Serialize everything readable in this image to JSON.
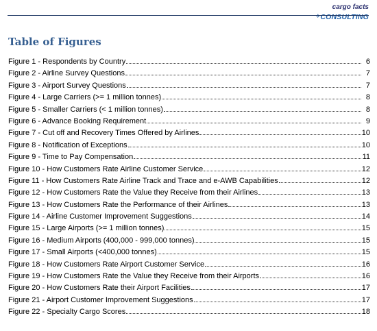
{
  "logo": {
    "line1": "cargo facts",
    "line2": "CONSULTING"
  },
  "title": "Table of Figures",
  "entries": [
    {
      "label": "Figure 1 - Respondents by Country",
      "page": "6"
    },
    {
      "label": "Figure 2 - Airline Survey Questions",
      "page": "7"
    },
    {
      "label": "Figure 3 - Airport Survey Questions",
      "page": "7"
    },
    {
      "label": "Figure 4 - Large Carriers (>= 1 million tonnes)",
      "page": "8"
    },
    {
      "label": "Figure 5 - Smaller Carriers (< 1 million tonnes)",
      "page": "8"
    },
    {
      "label": "Figure 6 - Advance Booking Requirement",
      "page": "9"
    },
    {
      "label": "Figure 7 - Cut off and Recovery Times Offered by Airlines",
      "page": "10"
    },
    {
      "label": "Figure 8 - Notification of Exceptions",
      "page": "10"
    },
    {
      "label": "Figure 9 - Time to Pay Compensation",
      "page": "11"
    },
    {
      "label": "Figure 10 - How Customers Rate Airline Customer Service",
      "page": "12"
    },
    {
      "label": "Figure 11 - How Customers Rate Airline Track and Trace and e-AWB Capabilities",
      "page": "12"
    },
    {
      "label": "Figure 12 - How Customers Rate the Value they Receive from their Airlines",
      "page": "13"
    },
    {
      "label": "Figure 13 - How Customers Rate the Performance of their Airlines",
      "page": "13"
    },
    {
      "label": "Figure 14 - Airline Customer Improvement Suggestions",
      "page": "14"
    },
    {
      "label": "Figure 15 - Large Airports (>= 1 million tonnes)",
      "page": "15"
    },
    {
      "label": "Figure 16 - Medium Airports (400,000 - 999,000 tonnes)",
      "page": "15"
    },
    {
      "label": "Figure 17 - Small Airports (<400,000 tonnes)",
      "page": "15"
    },
    {
      "label": "Figure 18 - How Customers Rate Airport Customer Service",
      "page": "16"
    },
    {
      "label": "Figure 19 - How Customers Rate the Value they Receive from their Airports",
      "page": "16"
    },
    {
      "label": "Figure 20 - How Customers Rate their Airport Facilities",
      "page": "17"
    },
    {
      "label": "Figure 21 - Airport Customer Improvement Suggestions",
      "page": "17"
    },
    {
      "label": "Figure 22 - Specialty Cargo Scores",
      "page": "18"
    }
  ]
}
